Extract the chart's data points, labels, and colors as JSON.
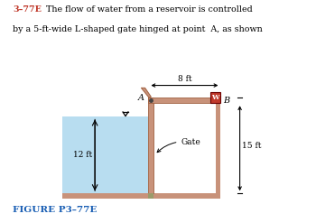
{
  "title_bold": "3–77E",
  "title_line1": "  The flow of water from a reservoir is controlled",
  "title_line2": "by a 5-ft-wide L-shaped gate hinged at point  A, as shown",
  "figure_label": "FIGURE P3–77E",
  "figure_label_color": "#1a5fb4",
  "water_color": "#b8ddf0",
  "wall_color": "#c8927a",
  "wall_edge": "#a06040",
  "gate_label": "Gate",
  "label_A": "A",
  "label_B": "B",
  "label_W": "W",
  "label_8ft": "8 ft",
  "label_12ft": "12 ft",
  "label_15ft": "15 ft",
  "weight_box_color": "#c0392b",
  "corner_color": "#9b9b6a"
}
